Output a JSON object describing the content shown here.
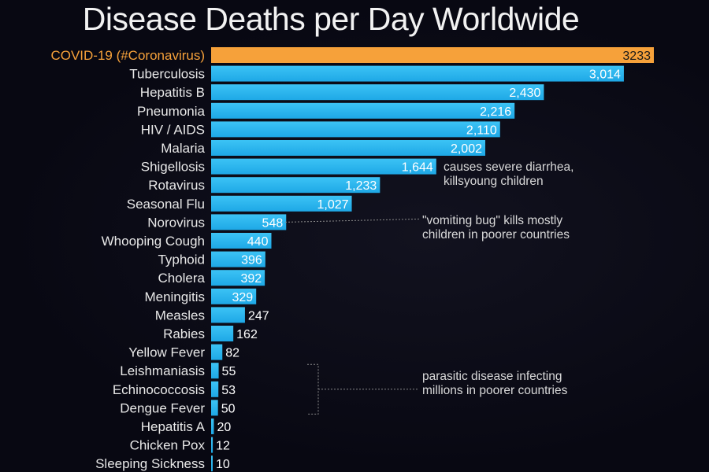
{
  "chart_data": {
    "type": "bar",
    "orientation": "horizontal",
    "title": "Disease Deaths per Day Worldwide",
    "categories": [
      "COVID-19 (#Coronavirus)",
      "Tuberculosis",
      "Hepatitis B",
      "Pneumonia",
      "HIV / AIDS",
      "Malaria",
      "Shigellosis",
      "Rotavirus",
      "Seasonal Flu",
      "Norovirus",
      "Whooping Cough",
      "Typhoid",
      "Cholera",
      "Meningitis",
      "Measles",
      "Rabies",
      "Yellow Fever",
      "Leishmaniasis",
      "Echinococcosis",
      "Dengue Fever",
      "Hepatitis A",
      "Chicken Pox",
      "Sleeping Sickness"
    ],
    "values": [
      3233,
      3014,
      2430,
      2216,
      2110,
      2002,
      1644,
      1233,
      1027,
      548,
      440,
      396,
      392,
      329,
      247,
      162,
      82,
      55,
      53,
      50,
      20,
      12,
      10
    ],
    "value_labels": [
      "3233",
      "3,014",
      "2,430",
      "2,216",
      "2,110",
      "2,002",
      "1,644",
      "1,233",
      "1,027",
      "548",
      "440",
      "396",
      "392",
      "329",
      "247",
      "162",
      "82",
      "55",
      "53",
      "50",
      "20",
      "12",
      "10"
    ],
    "highlight_index": 0,
    "xlabel": "",
    "ylabel": "",
    "xlim": [
      0,
      3233
    ],
    "grid": false
  },
  "annotations": {
    "shigellosis": "causes severe diarrhea,\nkillsyoung children",
    "norovirus": "\"vomiting bug\" kills mostly\nchildren in poorer countries",
    "parasitic": "parasitic disease infecting\nmillions in poorer countries"
  },
  "colors": {
    "background": "#080812",
    "bar": "#1ea8e6",
    "bar_highlight": "#f6a13a",
    "label": "#e8e8e8",
    "label_highlight": "#f6a13a",
    "value_outside": "#e8e8e8",
    "connector": "#8a8a8a"
  }
}
